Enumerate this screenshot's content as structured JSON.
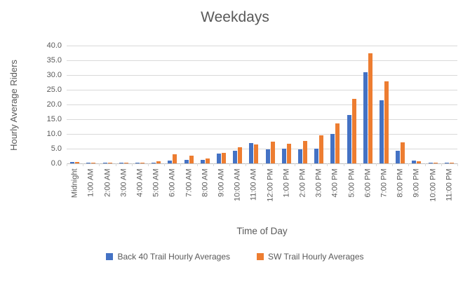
{
  "title": "Weekdays",
  "colors": {
    "series_back40": "#4472C4",
    "series_sw": "#ED7D31",
    "gridline": "#D9D9D9",
    "axis_line": "#BFBFBF",
    "text": "#595959"
  },
  "legend": [
    {
      "label": "Back 40 Trail Hourly Averages",
      "color": "#4472C4"
    },
    {
      "label": "SW Trail Hourly Averages",
      "color": "#ED7D31"
    }
  ],
  "chart_data": {
    "type": "bar",
    "title": "Weekdays",
    "xlabel": "Time of Day",
    "ylabel": "Hourly Average Riders",
    "ylim": [
      0,
      40
    ],
    "ytick_step": 5,
    "ytick_decimals": 1,
    "grid": true,
    "legend_position": "bottom",
    "categories": [
      "Midnight",
      "1:00 AM",
      "2:00 AM",
      "3:00 AM",
      "4:00 AM",
      "5:00 AM",
      "6:00 AM",
      "7:00 AM",
      "8:00 AM",
      "9:00 AM",
      "10:00 AM",
      "11:00 AM",
      "12:00 PM",
      "1:00 PM",
      "2:00 PM",
      "3:00 PM",
      "4:00 PM",
      "5:00 PM",
      "6:00 PM",
      "7:00 PM",
      "8:00 PM",
      "9:00 PM",
      "10:00 PM",
      "11:00 PM"
    ],
    "series": [
      {
        "name": "Back 40 Trail Hourly Averages",
        "color": "#4472C4",
        "values": [
          0.4,
          0.3,
          0.3,
          0.1,
          0.2,
          0.3,
          1.0,
          1.2,
          1.2,
          3.3,
          4.3,
          7.0,
          4.8,
          5.1,
          4.7,
          5.1,
          9.9,
          16.5,
          30.9,
          21.5,
          4.2,
          1.0,
          0.2,
          0.3
        ]
      },
      {
        "name": "SW Trail Hourly Averages",
        "color": "#ED7D31",
        "values": [
          0.4,
          0.3,
          0.1,
          0.2,
          0.1,
          0.7,
          3.0,
          2.5,
          1.7,
          3.5,
          5.5,
          6.4,
          7.3,
          6.7,
          7.7,
          9.5,
          13.5,
          22.0,
          37.4,
          27.9,
          7.2,
          0.8,
          0.2,
          0.2
        ]
      }
    ]
  }
}
